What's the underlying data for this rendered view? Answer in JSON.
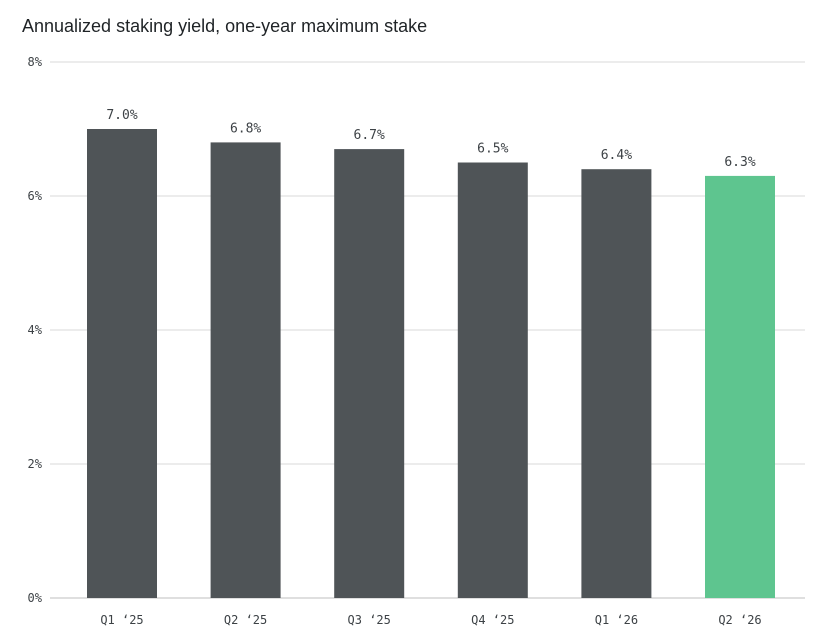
{
  "chart_data": {
    "type": "bar",
    "title": "Annualized staking yield, one-year maximum stake",
    "categories": [
      "Q1 ‘25",
      "Q2 ‘25",
      "Q3 ‘25",
      "Q4 ‘25",
      "Q1 ‘26",
      "Q2 ‘26"
    ],
    "values": [
      7.0,
      6.8,
      6.7,
      6.5,
      6.4,
      6.3
    ],
    "data_labels": [
      "7.0%",
      "6.8%",
      "6.7%",
      "6.5%",
      "6.4%",
      "6.3%"
    ],
    "ylim": [
      0,
      8
    ],
    "yticks": [
      0,
      2,
      4,
      6,
      8
    ],
    "ytick_labels": [
      "0%",
      "2%",
      "4%",
      "6%",
      "8%"
    ],
    "xlabel": "",
    "ylabel": "",
    "grid": true,
    "legend": "none",
    "colors": {
      "bar": "#4f5457",
      "highlight": "#5ec58f",
      "highlight_index": 5,
      "grid": "#d9d9d9",
      "axis": "#bfbfbf"
    }
  }
}
